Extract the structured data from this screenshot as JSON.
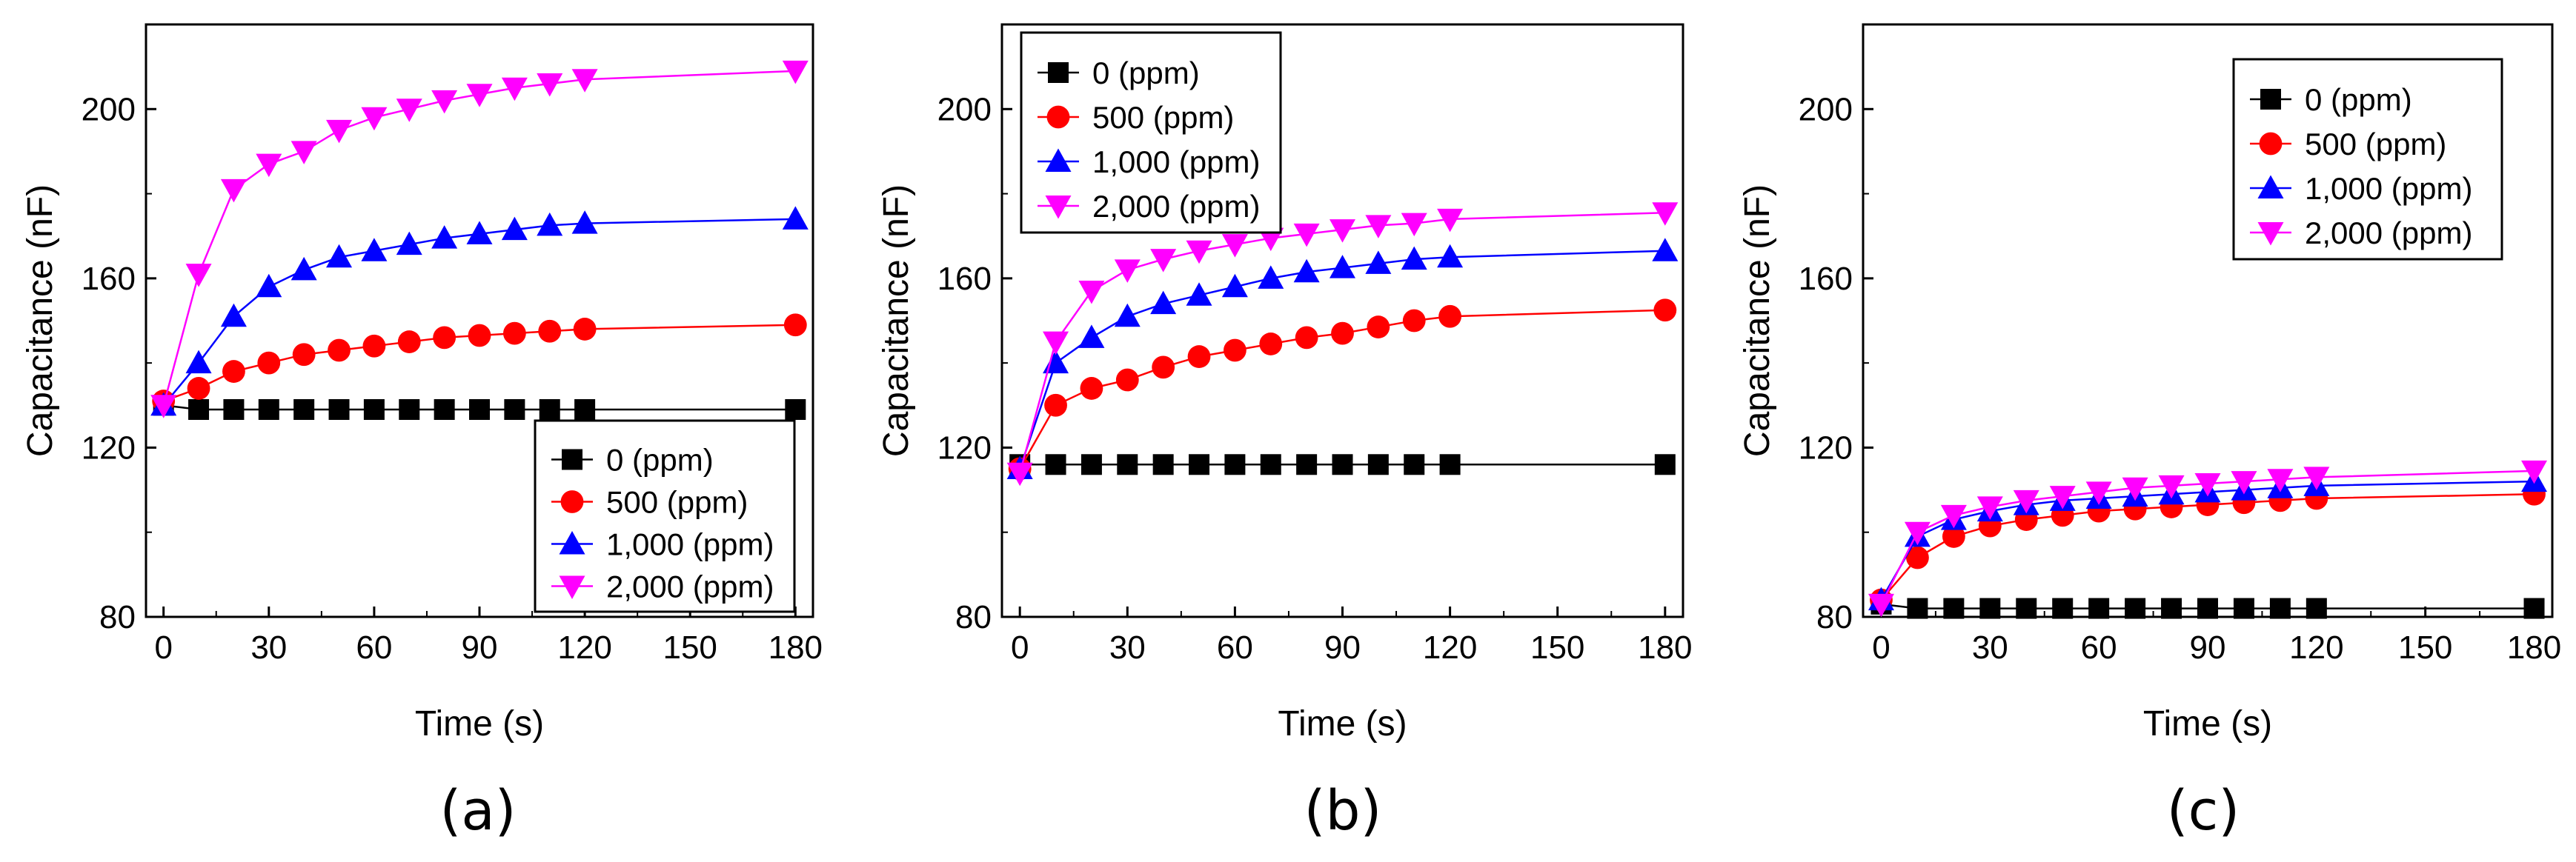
{
  "chart_data": [
    {
      "type": "line",
      "panel_label": "(a)",
      "xlabel": "Time (s)",
      "ylabel": "Capacitance (nF)",
      "xlim": [
        -5,
        185
      ],
      "ylim": [
        80,
        220
      ],
      "xticks": [
        0,
        30,
        60,
        90,
        120,
        150,
        180
      ],
      "yticks": [
        80,
        120,
        160,
        200
      ],
      "legend_placement": "bottom-right",
      "x": [
        0,
        10,
        20,
        30,
        40,
        50,
        60,
        70,
        80,
        90,
        100,
        110,
        120,
        180
      ],
      "series": [
        {
          "name": "0 (ppm)",
          "color": "#000000",
          "marker": "square",
          "values": [
            130,
            129,
            129,
            129,
            129,
            129,
            129,
            129,
            129,
            129,
            129,
            129,
            129,
            129
          ]
        },
        {
          "name": "500 (ppm)",
          "color": "#ff0000",
          "marker": "circle",
          "values": [
            131,
            134,
            138,
            140,
            142,
            143,
            144,
            145,
            146,
            146.5,
            147,
            147.5,
            148,
            149
          ]
        },
        {
          "name": "1,000 (ppm)",
          "color": "#0000ff",
          "marker": "triangle-up",
          "values": [
            130,
            140,
            151,
            158,
            162,
            165,
            166.5,
            168,
            169.5,
            170.5,
            171.5,
            172.5,
            173,
            174
          ]
        },
        {
          "name": "2,000 (ppm)",
          "color": "#ff00ff",
          "marker": "triangle-down",
          "values": [
            130,
            161,
            181,
            187,
            190,
            195,
            198,
            200,
            202,
            203.5,
            205,
            206,
            207,
            209
          ]
        }
      ]
    },
    {
      "type": "line",
      "panel_label": "(b)",
      "xlabel": "Time (s)",
      "ylabel": "Capacitance (nF)",
      "xlim": [
        -5,
        185
      ],
      "ylim": [
        80,
        220
      ],
      "xticks": [
        0,
        30,
        60,
        90,
        120,
        150,
        180
      ],
      "yticks": [
        80,
        120,
        160,
        200
      ],
      "legend_placement": "top-left",
      "x": [
        0,
        10,
        20,
        30,
        40,
        50,
        60,
        70,
        80,
        90,
        100,
        110,
        120,
        180
      ],
      "series": [
        {
          "name": "0 (ppm)",
          "color": "#000000",
          "marker": "square",
          "values": [
            116,
            116,
            116,
            116,
            116,
            116,
            116,
            116,
            116,
            116,
            116,
            116,
            116,
            116
          ]
        },
        {
          "name": "500 (ppm)",
          "color": "#ff0000",
          "marker": "circle",
          "values": [
            115,
            130,
            134,
            136,
            139,
            141.5,
            143,
            144.5,
            146,
            147,
            148.5,
            150,
            151,
            152.5
          ]
        },
        {
          "name": "1,000 (ppm)",
          "color": "#0000ff",
          "marker": "triangle-up",
          "values": [
            115,
            140,
            146,
            151,
            154,
            156,
            158,
            160,
            161.5,
            162.5,
            163.5,
            164.5,
            165,
            166.5
          ]
        },
        {
          "name": "2,000 (ppm)",
          "color": "#ff00ff",
          "marker": "triangle-down",
          "values": [
            114,
            145,
            157,
            162,
            164.5,
            166.5,
            168,
            169.5,
            170.5,
            171.5,
            172.5,
            173,
            174,
            175.5
          ]
        }
      ]
    },
    {
      "type": "line",
      "panel_label": "(c)",
      "xlabel": "Time (s)",
      "ylabel": "Capacitance (nF)",
      "xlim": [
        -5,
        185
      ],
      "ylim": [
        80,
        220
      ],
      "xticks": [
        0,
        30,
        60,
        90,
        120,
        150,
        180
      ],
      "yticks": [
        80,
        120,
        160,
        200
      ],
      "legend_placement": "top-right",
      "x": [
        0,
        10,
        20,
        30,
        40,
        50,
        60,
        70,
        80,
        90,
        100,
        110,
        120,
        180
      ],
      "series": [
        {
          "name": "0 (ppm)",
          "color": "#000000",
          "marker": "square",
          "values": [
            83,
            82,
            82,
            82,
            82,
            82,
            82,
            82,
            82,
            82,
            82,
            82,
            82,
            82
          ]
        },
        {
          "name": "500 (ppm)",
          "color": "#ff0000",
          "marker": "circle",
          "values": [
            84,
            94,
            99,
            101.5,
            103,
            104,
            105,
            105.5,
            106,
            106.5,
            107,
            107.5,
            108,
            109
          ]
        },
        {
          "name": "1,000 (ppm)",
          "color": "#0000ff",
          "marker": "triangle-up",
          "values": [
            84,
            99,
            103,
            105,
            106.5,
            107.5,
            108,
            108.5,
            109,
            109.5,
            110,
            110.5,
            111,
            112
          ]
        },
        {
          "name": "2,000 (ppm)",
          "color": "#ff00ff",
          "marker": "triangle-down",
          "values": [
            83,
            100,
            104,
            106,
            107.5,
            108.5,
            109.5,
            110.5,
            111,
            111.5,
            112,
            112.5,
            113,
            114.5
          ]
        }
      ]
    }
  ]
}
